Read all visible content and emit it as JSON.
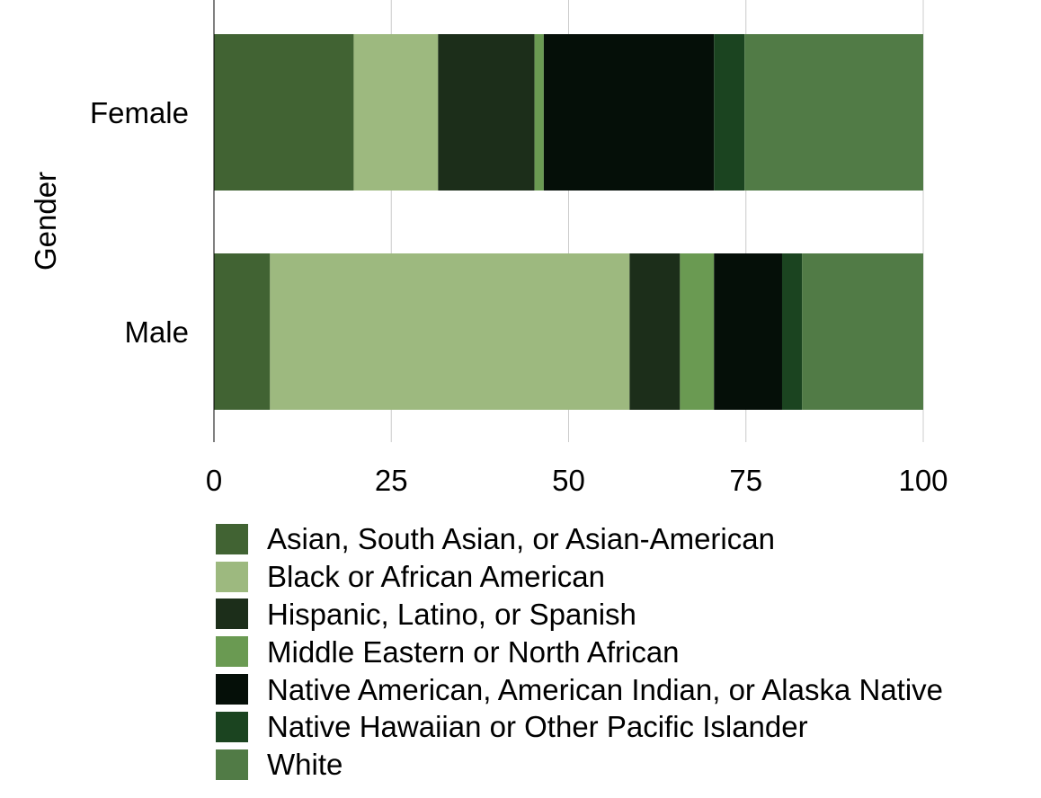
{
  "chart_data": {
    "type": "bar",
    "orientation": "horizontal",
    "stacked": true,
    "ylabel": "Gender",
    "xlabel": "",
    "categories": [
      "Female",
      "Male"
    ],
    "xlim": [
      0,
      100
    ],
    "xticks": [
      "0",
      "25",
      "50",
      "75",
      "100"
    ],
    "grid": true,
    "legend_position": "bottom",
    "series": [
      {
        "name": "Asian, South Asian, or Asian-American",
        "color": "#416333",
        "values": [
          19.7,
          7.9
        ]
      },
      {
        "name": "Black or African American",
        "color": "#9db97f",
        "values": [
          11.9,
          50.7
        ]
      },
      {
        "name": "Hispanic, Latino, or Spanish",
        "color": "#1c2e1a",
        "values": [
          13.6,
          7.1
        ]
      },
      {
        "name": "Middle Eastern or North African",
        "color": "#6a9a52",
        "values": [
          1.3,
          4.8
        ]
      },
      {
        "name": "Native American, American Indian, or Alaska Native",
        "color": "#050f08",
        "values": [
          24.0,
          9.6
        ]
      },
      {
        "name": "Native Hawaiian or Other Pacific Islander",
        "color": "#1b4420",
        "values": [
          4.3,
          2.8
        ]
      },
      {
        "name": "White",
        "color": "#517b46",
        "values": [
          25.2,
          17.1
        ]
      }
    ]
  }
}
